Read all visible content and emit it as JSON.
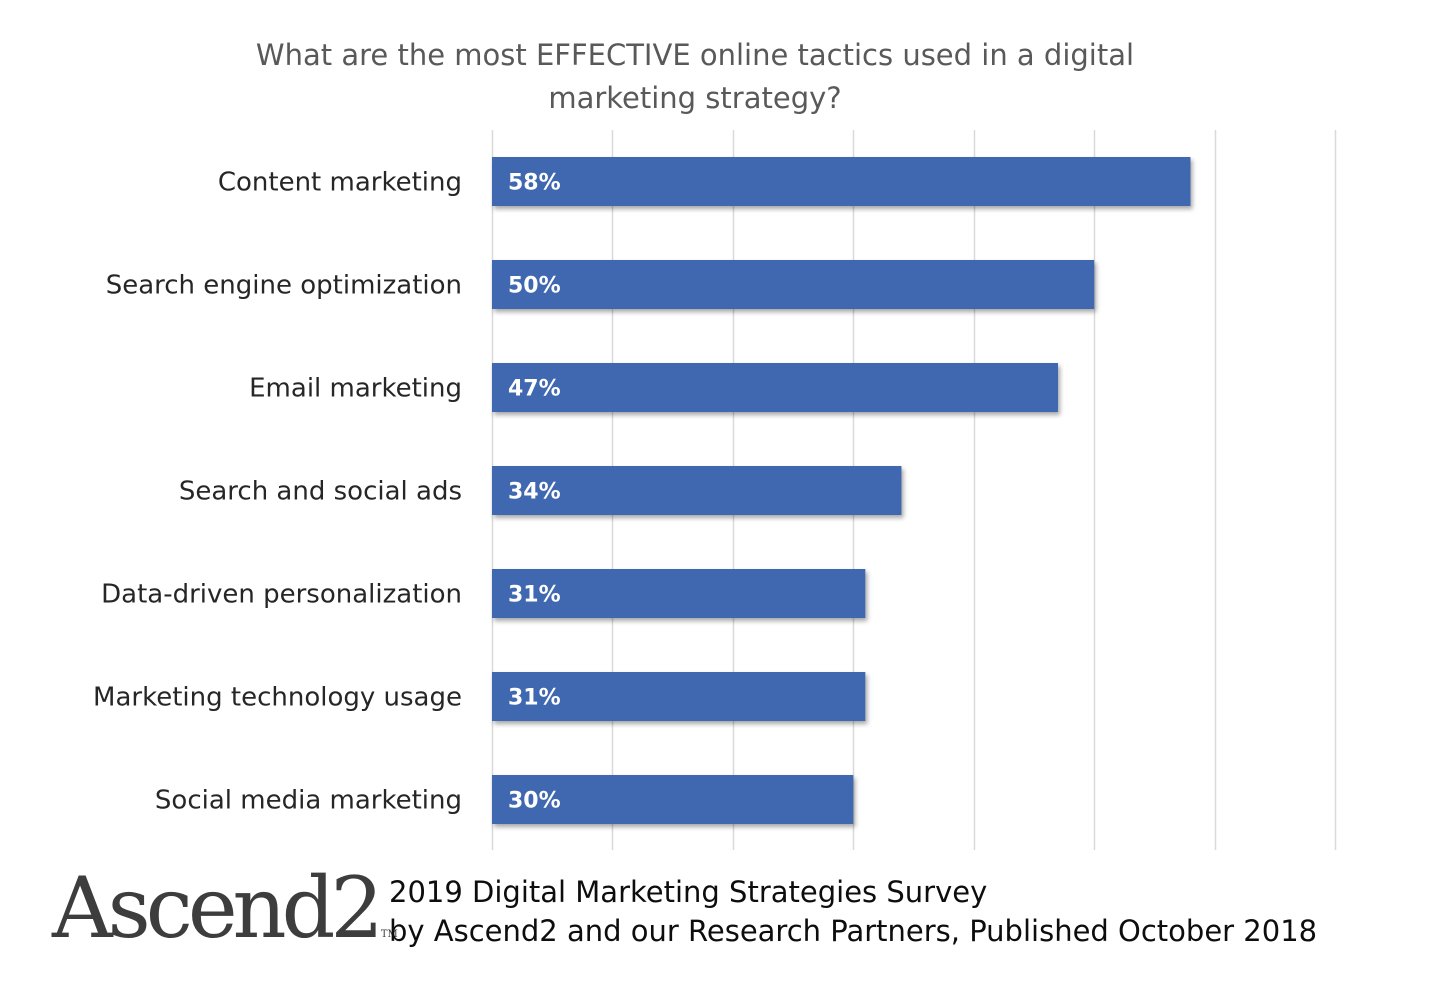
{
  "chart_data": {
    "type": "bar",
    "orientation": "horizontal",
    "title": "What are the most EFFECTIVE online tactics used in a digital marketing strategy?",
    "categories": [
      "Content marketing",
      "Search engine optimization",
      "Email marketing",
      "Search and social ads",
      "Data-driven personalization",
      "Marketing technology usage",
      "Social media marketing"
    ],
    "values": [
      58,
      50,
      47,
      34,
      31,
      31,
      30
    ],
    "data_labels": [
      "58%",
      "50%",
      "47%",
      "34%",
      "31%",
      "31%",
      "30%"
    ],
    "value_unit": "%",
    "xlim": [
      0,
      70
    ],
    "grid_step": 10,
    "grid": true,
    "legend": "none",
    "bar_color": "#4168b1",
    "gridline_color": "#d9d9d9"
  },
  "footer": {
    "logo_text": "Ascend2",
    "logo_tm": "TM",
    "line1": "2019 Digital Marketing Strategies Survey",
    "line2": "by Ascend2 and our Research Partners, Published October 2018"
  }
}
